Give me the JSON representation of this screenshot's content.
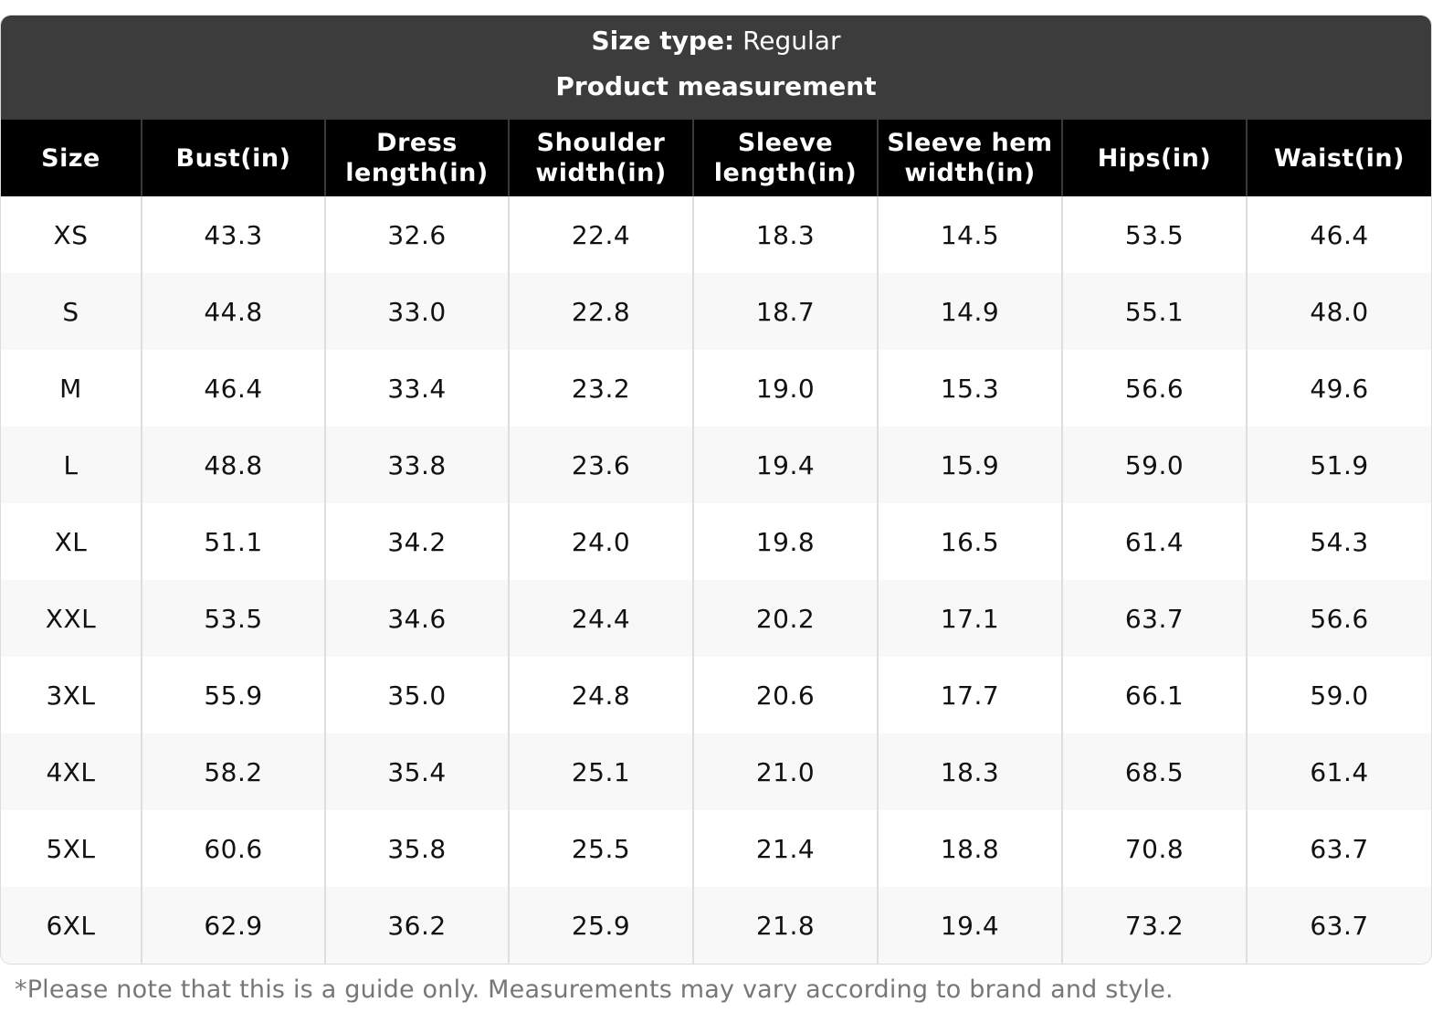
{
  "header": {
    "size_type_label": "Size type:",
    "size_type_value": "Regular",
    "subtitle": "Product measurement"
  },
  "table": {
    "columns": [
      "Size",
      "Bust(in)",
      "Dress length(in)",
      "Shoulder width(in)",
      "Sleeve length(in)",
      "Sleeve hem width(in)",
      "Hips(in)",
      "Waist(in)"
    ],
    "rows": [
      [
        "XS",
        "43.3",
        "32.6",
        "22.4",
        "18.3",
        "14.5",
        "53.5",
        "46.4"
      ],
      [
        "S",
        "44.8",
        "33.0",
        "22.8",
        "18.7",
        "14.9",
        "55.1",
        "48.0"
      ],
      [
        "M",
        "46.4",
        "33.4",
        "23.2",
        "19.0",
        "15.3",
        "56.6",
        "49.6"
      ],
      [
        "L",
        "48.8",
        "33.8",
        "23.6",
        "19.4",
        "15.9",
        "59.0",
        "51.9"
      ],
      [
        "XL",
        "51.1",
        "34.2",
        "24.0",
        "19.8",
        "16.5",
        "61.4",
        "54.3"
      ],
      [
        "XXL",
        "53.5",
        "34.6",
        "24.4",
        "20.2",
        "17.1",
        "63.7",
        "56.6"
      ],
      [
        "3XL",
        "55.9",
        "35.0",
        "24.8",
        "20.6",
        "17.7",
        "66.1",
        "59.0"
      ],
      [
        "4XL",
        "58.2",
        "35.4",
        "25.1",
        "21.0",
        "18.3",
        "68.5",
        "61.4"
      ],
      [
        "5XL",
        "60.6",
        "35.8",
        "25.5",
        "21.4",
        "18.8",
        "70.8",
        "63.7"
      ],
      [
        "6XL",
        "62.9",
        "36.2",
        "25.9",
        "21.8",
        "19.4",
        "73.2",
        "63.7"
      ]
    ]
  },
  "footnote": "*Please note that this is a guide only. Measurements may vary according to brand and style.",
  "colors": {
    "banner": "#3c3c3c",
    "header_row": "#000000",
    "row_alt": "#f8f8f8",
    "footnote_text": "#777777"
  }
}
